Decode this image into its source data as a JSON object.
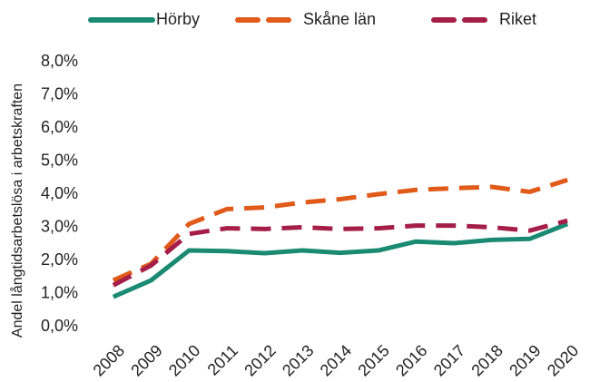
{
  "chart_data": {
    "type": "line",
    "y_label": "Andel långtidsarbetslösa i arbetskraften",
    "categories": [
      "2008",
      "2009",
      "2010",
      "2011",
      "2012",
      "2013",
      "2014",
      "2015",
      "2016",
      "2017",
      "2018",
      "2019",
      "2020"
    ],
    "series": [
      {
        "name": "Hörby",
        "color": "#1a8a73",
        "dashed": false,
        "values": [
          0.9,
          1.4,
          2.3,
          2.28,
          2.22,
          2.3,
          2.23,
          2.3,
          2.57,
          2.52,
          2.62,
          2.65,
          3.1
        ]
      },
      {
        "name": "Skåne län",
        "color": "#e05a1a",
        "dashed": true,
        "values": [
          1.4,
          1.9,
          3.1,
          3.55,
          3.6,
          3.75,
          3.85,
          4.0,
          4.13,
          4.18,
          4.22,
          4.07,
          4.43
        ]
      },
      {
        "name": "Riket",
        "color": "#a51e4a",
        "dashed": true,
        "values": [
          1.25,
          1.85,
          2.8,
          2.97,
          2.95,
          3.0,
          2.95,
          2.97,
          3.05,
          3.05,
          3.0,
          2.9,
          3.2
        ]
      }
    ],
    "ylim": [
      0,
      8
    ],
    "yticks": [
      {
        "value": 0,
        "label": "0,0%"
      },
      {
        "value": 1,
        "label": "1,0%"
      },
      {
        "value": 2,
        "label": "2,0%"
      },
      {
        "value": 3,
        "label": "3,0%"
      },
      {
        "value": 4,
        "label": "4,0%"
      },
      {
        "value": 5,
        "label": "5,0%"
      },
      {
        "value": 6,
        "label": "6,0%"
      },
      {
        "value": 7,
        "label": "7,0%"
      },
      {
        "value": 8,
        "label": "8,0%"
      }
    ],
    "grid": false,
    "legend": "top"
  }
}
